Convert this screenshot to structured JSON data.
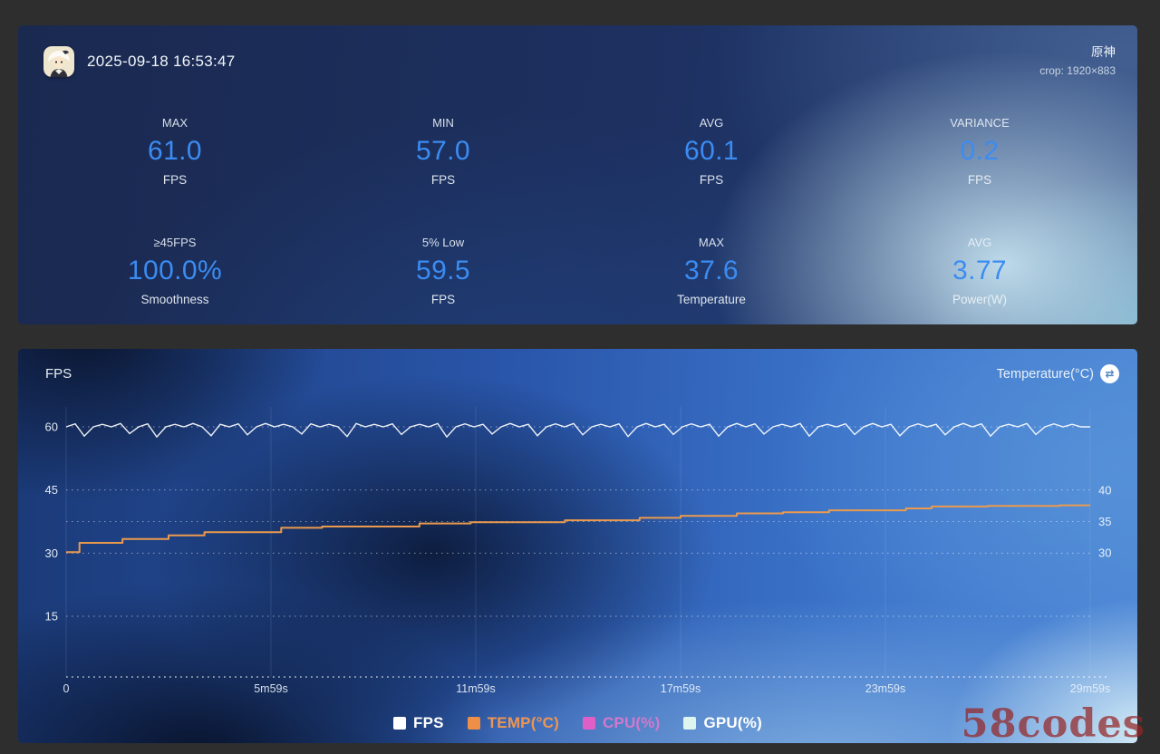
{
  "header": {
    "timestamp": "2025-09-18 16:53:47",
    "game_title": "原神",
    "crop_info": "crop: 1920×883"
  },
  "stats": {
    "accent_color": "#3b8cf2",
    "cards": [
      {
        "label": "MAX",
        "value": "61.0",
        "unit": "FPS"
      },
      {
        "label": "MIN",
        "value": "57.0",
        "unit": "FPS"
      },
      {
        "label": "AVG",
        "value": "60.1",
        "unit": "FPS"
      },
      {
        "label": "VARIANCE",
        "value": "0.2",
        "unit": "FPS"
      },
      {
        "label": "≥45FPS",
        "value": "100.0%",
        "unit": "Smoothness"
      },
      {
        "label": "5% Low",
        "value": "59.5",
        "unit": "FPS"
      },
      {
        "label": "MAX",
        "value": "37.6",
        "unit": "Temperature"
      },
      {
        "label": "AVG",
        "value": "3.77",
        "unit": "Power(W)"
      }
    ]
  },
  "chart": {
    "left_axis_title": "FPS",
    "right_axis_title": "Temperature(°C)"
  },
  "chart_data": {
    "type": "line",
    "title": "FPS and temperature over a 30-minute session",
    "x_ticks": [
      "0",
      "5m59s",
      "11m59s",
      "17m59s",
      "23m59s",
      "29m59s"
    ],
    "left_axis": {
      "label": "FPS",
      "ticks": [
        15,
        30,
        45,
        60
      ]
    },
    "right_axis": {
      "label": "Temperature(°C)",
      "ticks": [
        30,
        35,
        40
      ]
    },
    "grid": "dotted horizontal lines at every tick, faint vertical lines at every x tick",
    "legend_position": "bottom-center",
    "legend": [
      {
        "label": "FPS",
        "color": "#ffffff",
        "text_color": "#ffffff"
      },
      {
        "label": "TEMP(°C)",
        "color": "#ee8f47",
        "text_color": "#ef9553"
      },
      {
        "label": "CPU(%)",
        "color": "#de5fc6",
        "text_color": "#d379cc"
      },
      {
        "label": "GPU(%)",
        "color": "#def4ef",
        "text_color": "#ffffff"
      }
    ],
    "series": [
      {
        "name": "FPS",
        "axis": "left",
        "color": "#ffffff",
        "values": [
          60,
          60.7,
          57.8,
          60,
          60.6,
          60,
          60.8,
          58.4,
          60,
          60.7,
          57.6,
          60,
          60.6,
          60,
          60.8,
          60,
          57.9,
          60.6,
          60,
          60.7,
          58.1,
          60,
          60.8,
          60,
          60.6,
          60,
          58.3,
          60.7,
          60,
          60.6,
          60,
          57.7,
          60.8,
          60,
          60.6,
          60,
          60.7,
          58.2,
          60,
          60.6,
          60,
          60.8,
          57.6,
          60,
          60.7,
          60,
          60.6,
          58.3,
          60,
          60.8,
          60,
          60.6,
          57.9,
          60,
          60.7,
          60,
          60.8,
          58.1,
          60,
          60.6,
          60,
          60.7,
          57.7,
          60,
          60.8,
          60,
          60.6,
          58.2,
          60,
          60.7,
          60,
          60.6,
          57.8,
          60,
          60.8,
          60,
          60.7,
          58.3,
          60,
          60.6,
          60,
          60.8,
          57.8,
          60,
          60.6,
          60,
          60.7,
          58.2,
          60,
          60.8,
          60,
          60.6,
          57.9,
          60,
          60.7,
          60,
          60.6,
          58.1,
          60,
          60.8,
          60,
          60.7,
          57.8,
          60,
          60.6,
          60,
          60.8,
          58.2,
          60,
          60.7,
          60,
          60.6,
          60,
          60
        ]
      },
      {
        "name": "TEMP(°C)",
        "axis": "right",
        "color": "#eb9a4d",
        "style": "step-after",
        "points": [
          [
            0,
            30.1
          ],
          [
            0.013,
            31.6
          ],
          [
            0.055,
            32.2
          ],
          [
            0.1,
            32.8
          ],
          [
            0.135,
            33.3
          ],
          [
            0.21,
            34.0
          ],
          [
            0.25,
            34.2
          ],
          [
            0.345,
            34.7
          ],
          [
            0.395,
            34.9
          ],
          [
            0.487,
            35.2
          ],
          [
            0.56,
            35.6
          ],
          [
            0.6,
            35.9
          ],
          [
            0.655,
            36.3
          ],
          [
            0.7,
            36.5
          ],
          [
            0.745,
            36.8
          ],
          [
            0.82,
            37.1
          ],
          [
            0.845,
            37.4
          ],
          [
            0.9,
            37.5
          ],
          [
            0.97,
            37.6
          ],
          [
            1.0,
            37.6
          ]
        ]
      }
    ]
  },
  "watermark": {
    "text": "58codes",
    "color": "rgba(148,38,38,0.72)"
  }
}
